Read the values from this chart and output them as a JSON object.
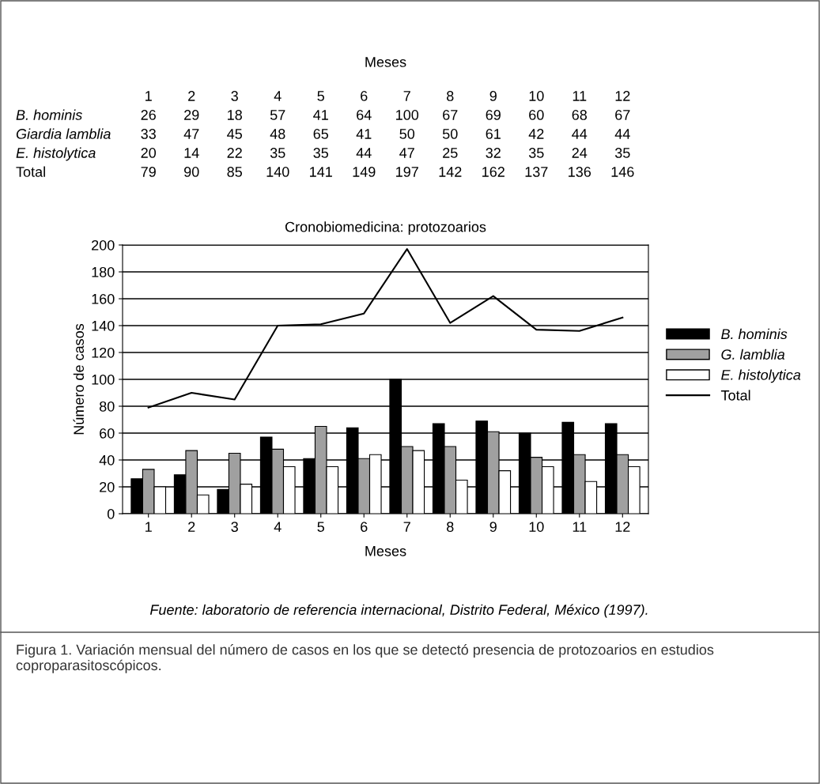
{
  "chart_data": {
    "type": "bar",
    "title": "Cronobiomedicina: protozoarios",
    "xlabel": "Meses",
    "ylabel": "Número de casos",
    "categories": [
      "1",
      "2",
      "3",
      "4",
      "5",
      "6",
      "7",
      "8",
      "9",
      "10",
      "11",
      "12"
    ],
    "series": [
      {
        "name": "B. hominis",
        "color": "#000000",
        "values": [
          26,
          29,
          18,
          57,
          41,
          64,
          100,
          67,
          69,
          60,
          68,
          67
        ]
      },
      {
        "name": "G. lamblia",
        "color": "#a0a0a0",
        "values": [
          33,
          47,
          45,
          48,
          65,
          41,
          50,
          50,
          61,
          42,
          44,
          44
        ]
      },
      {
        "name": "E. histolytica",
        "color": "#ffffff",
        "values": [
          20,
          14,
          22,
          35,
          35,
          44,
          47,
          25,
          32,
          35,
          24,
          35
        ]
      },
      {
        "name": "Total",
        "type": "line",
        "color": "#000000",
        "values": [
          79,
          90,
          85,
          140,
          141,
          149,
          197,
          142,
          162,
          137,
          136,
          146
        ]
      }
    ],
    "ylim": [
      0,
      200
    ],
    "yticks": [
      0,
      20,
      40,
      60,
      80,
      100,
      120,
      140,
      160,
      180,
      200
    ],
    "grid": "y",
    "legend": "right",
    "data_labels": true,
    "annotations": [
      "Meses",
      "B. hominis",
      "Giardia lamblia",
      "E. histolytica",
      "Total",
      "Fuente: laboratorio de referencia internacional, Distrito Federal, México (1997).",
      "Figura 1. Variación mensual del número de casos en los que se detectó presencia de protozoarios en estudios coproparasitoscópicos."
    ]
  }
}
